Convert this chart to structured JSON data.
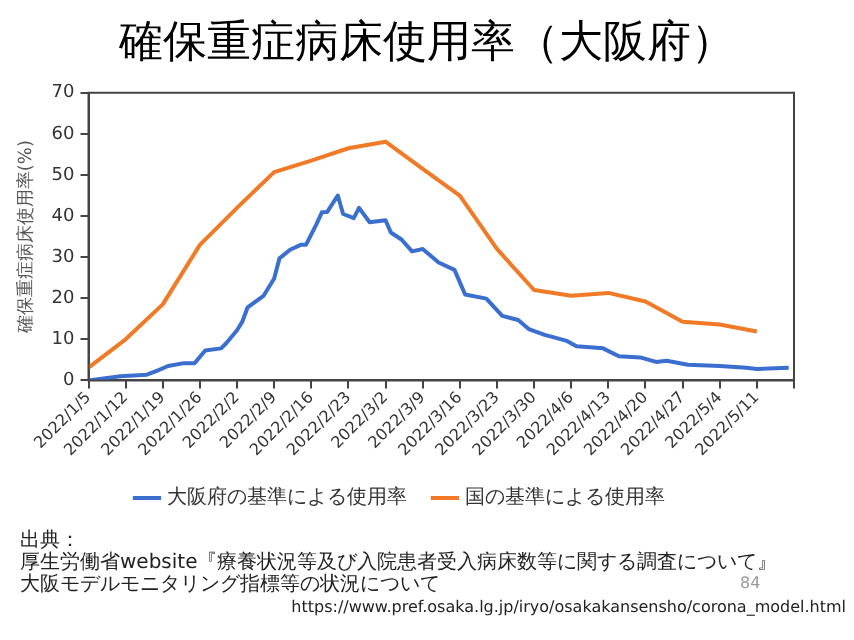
{
  "chart_data": {
    "type": "line",
    "title": "確保重症病床使用率（大阪府）",
    "ylabel": "確保重症病床使用率(%)",
    "xlim": [
      "2022-01-05",
      "2022-05-18"
    ],
    "xticks": [
      {
        "value": "2022-01-05",
        "label": "2022/1/5"
      },
      {
        "value": "2022-01-12",
        "label": "2022/1/12"
      },
      {
        "value": "2022-01-19",
        "label": "2022/1/19"
      },
      {
        "value": "2022-01-26",
        "label": "2022/1/26"
      },
      {
        "value": "2022-02-02",
        "label": "2022/2/2"
      },
      {
        "value": "2022-02-09",
        "label": "2022/2/9"
      },
      {
        "value": "2022-02-16",
        "label": "2022/2/16"
      },
      {
        "value": "2022-02-23",
        "label": "2022/2/23"
      },
      {
        "value": "2022-03-02",
        "label": "2022/3/2"
      },
      {
        "value": "2022-03-09",
        "label": "2022/3/9"
      },
      {
        "value": "2022-03-16",
        "label": "2022/3/16"
      },
      {
        "value": "2022-03-23",
        "label": "2022/3/23"
      },
      {
        "value": "2022-03-30",
        "label": "2022/3/30"
      },
      {
        "value": "2022-04-06",
        "label": "2022/4/6"
      },
      {
        "value": "2022-04-13",
        "label": "2022/4/13"
      },
      {
        "value": "2022-04-20",
        "label": "2022/4/20"
      },
      {
        "value": "2022-04-27",
        "label": "2022/4/27"
      },
      {
        "value": "2022-05-04",
        "label": "2022/5/4"
      },
      {
        "value": "2022-05-11",
        "label": "2022/5/11"
      },
      {
        "value": "2022-05-18",
        "label": null
      }
    ],
    "ylim": [
      0,
      70
    ],
    "yticks": [
      0,
      10,
      20,
      30,
      40,
      50,
      60,
      70
    ],
    "grid": false,
    "legend": "bottom",
    "marker": "none",
    "line_style": "solid",
    "series": [
      {
        "name": "大阪府の基準による使用率",
        "color": "#3a6fd0",
        "x": [
          "2022-01-05",
          "2022-01-11",
          "2022-01-16",
          "2022-01-18",
          "2022-01-20",
          "2022-01-23",
          "2022-01-25",
          "2022-01-27",
          "2022-01-30",
          "2022-01-31",
          "2022-02-02",
          "2022-02-03",
          "2022-02-04",
          "2022-02-07",
          "2022-02-09",
          "2022-02-10",
          "2022-02-12",
          "2022-02-14",
          "2022-02-15",
          "2022-02-17",
          "2022-02-18",
          "2022-02-19",
          "2022-02-21",
          "2022-02-22",
          "2022-02-24",
          "2022-02-25",
          "2022-02-27",
          "2022-03-02",
          "2022-03-03",
          "2022-03-05",
          "2022-03-07",
          "2022-03-09",
          "2022-03-12",
          "2022-03-15",
          "2022-03-17",
          "2022-03-21",
          "2022-03-24",
          "2022-03-27",
          "2022-03-29",
          "2022-04-01",
          "2022-04-05",
          "2022-04-07",
          "2022-04-12",
          "2022-04-15",
          "2022-04-19",
          "2022-04-22",
          "2022-04-24",
          "2022-04-28",
          "2022-05-04",
          "2022-05-09",
          "2022-05-11",
          "2022-05-17"
        ],
        "values": [
          0,
          1.0,
          1.4,
          2.4,
          3.5,
          4.2,
          4.2,
          7.3,
          7.8,
          9.1,
          12.2,
          14.3,
          17.8,
          20.6,
          24.8,
          29.7,
          31.8,
          33,
          33,
          38.1,
          40.9,
          41,
          45,
          40.5,
          39.5,
          42,
          38.5,
          39,
          36,
          34.3,
          31.4,
          32,
          28.7,
          26.9,
          20.9,
          19.9,
          15.7,
          14.7,
          12.5,
          11.1,
          9.7,
          8.3,
          7.8,
          5.9,
          5.6,
          4.5,
          4.8,
          3.8,
          3.5,
          3.1,
          2.8,
          3.1
        ]
      },
      {
        "name": "国の基準による使用率",
        "color": "#f07a26",
        "x": [
          "2022-01-05",
          "2022-01-12",
          "2022-01-19",
          "2022-01-26",
          "2022-02-02",
          "2022-02-09",
          "2022-02-16",
          "2022-02-23",
          "2022-03-02",
          "2022-03-09",
          "2022-03-16",
          "2022-03-23",
          "2022-03-30",
          "2022-04-06",
          "2022-04-13",
          "2022-04-20",
          "2022-04-27",
          "2022-05-04",
          "2022-05-11"
        ],
        "values": [
          3.1,
          10,
          18.5,
          33,
          42,
          50.7,
          53.5,
          56.5,
          58.1,
          51.5,
          45,
          32,
          22,
          20.6,
          21.3,
          19.2,
          14.3,
          13.6,
          11.9
        ]
      }
    ],
    "annotations": [
      "出典：",
      "厚生労働省website『療養状況等及び入院患者受入病床数等に関する調査について』",
      "大阪モデルモニタリング指標等の状況について",
      "84",
      "https://www.pref.osaka.lg.jp/iryo/osakakansensho/corona_model.html"
    ]
  }
}
